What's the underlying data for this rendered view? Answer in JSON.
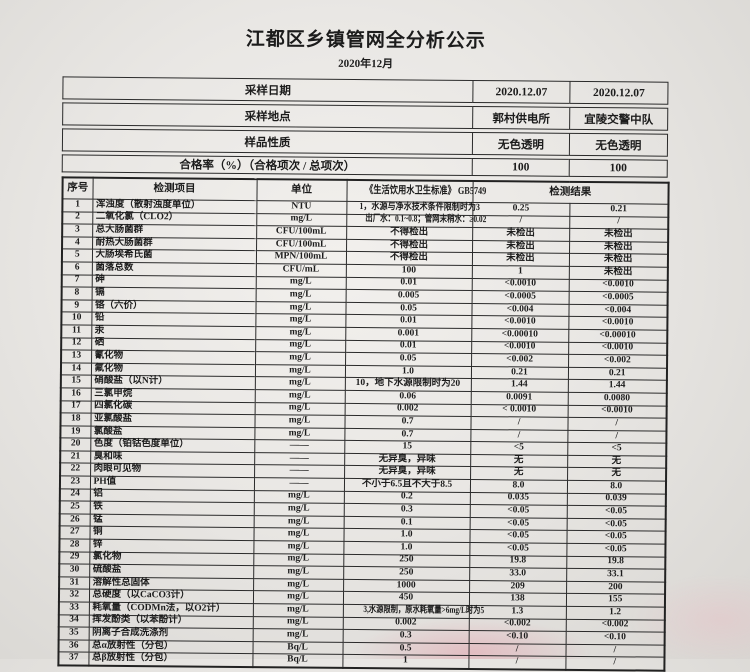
{
  "page": {
    "title": "江都区乡镇管网全分析公示",
    "subtitle": "2020年12月"
  },
  "colors": {
    "paper": "#f2f0ed",
    "ink": "#1c1c1c",
    "table_border": "#2b2b2b",
    "stamp_bleed_pink": "#e48c9c"
  },
  "info": {
    "rows": [
      {
        "label": "采样日期",
        "v1": "2020.12.07",
        "v2": "2020.12.07"
      },
      {
        "label": "采样地点",
        "v1": "郭村供电所",
        "v2": "宜陵交警中队"
      },
      {
        "label": "样品性质",
        "v1": "无色透明",
        "v2": "无色透明"
      },
      {
        "label": "合格率（%）（合格项次 / 总项次）",
        "v1": "100",
        "v2": "100"
      }
    ]
  },
  "table": {
    "headers": {
      "no": "序号",
      "item": "检测项目",
      "unit": "单位",
      "standard": "《生活饮用水卫生标准》 GB5749",
      "result": "检测结果"
    },
    "rows": [
      {
        "no": "1",
        "item": "浑浊度（散射浊度单位）",
        "unit": "NTU",
        "standard": "1，水源与净水技术条件限制时为3",
        "r1": "0.25",
        "r2": "0.21"
      },
      {
        "no": "2",
        "item": "二氧化氯（CLO2）",
        "unit": "mg/L",
        "standard": "出厂水：0.1~0.8；管网末稍水：≥0.02",
        "r1": "/",
        "r2": "/"
      },
      {
        "no": "3",
        "item": "总大肠菌群",
        "unit": "CFU/100mL",
        "standard": "不得检出",
        "r1": "未检出",
        "r2": "未检出"
      },
      {
        "no": "4",
        "item": "耐热大肠菌群",
        "unit": "CFU/100mL",
        "standard": "不得检出",
        "r1": "未检出",
        "r2": "未检出"
      },
      {
        "no": "5",
        "item": "大肠埃希氏菌",
        "unit": "MPN/100mL",
        "standard": "不得检出",
        "r1": "未检出",
        "r2": "未检出"
      },
      {
        "no": "6",
        "item": "菌落总数",
        "unit": "CFU/mL",
        "standard": "100",
        "r1": "1",
        "r2": "未检出"
      },
      {
        "no": "7",
        "item": "砷",
        "unit": "mg/L",
        "standard": "0.01",
        "r1": "<0.0010",
        "r2": "<0.0010"
      },
      {
        "no": "8",
        "item": "镉",
        "unit": "mg/L",
        "standard": "0.005",
        "r1": "<0.0005",
        "r2": "<0.0005"
      },
      {
        "no": "9",
        "item": "铬（六价）",
        "unit": "mg/L",
        "standard": "0.05",
        "r1": "<0.004",
        "r2": "<0.004"
      },
      {
        "no": "10",
        "item": "铅",
        "unit": "mg/L",
        "standard": "0.01",
        "r1": "<0.0010",
        "r2": "<0.0010"
      },
      {
        "no": "11",
        "item": "汞",
        "unit": "mg/L",
        "standard": "0.001",
        "r1": "<0.00010",
        "r2": "<0.00010"
      },
      {
        "no": "12",
        "item": "硒",
        "unit": "mg/L",
        "standard": "0.01",
        "r1": "<0.0010",
        "r2": "<0.0010"
      },
      {
        "no": "13",
        "item": "氰化物",
        "unit": "mg/L",
        "standard": "0.05",
        "r1": "<0.002",
        "r2": "<0.002"
      },
      {
        "no": "14",
        "item": "氟化物",
        "unit": "mg/L",
        "standard": "1.0",
        "r1": "0.21",
        "r2": "0.21"
      },
      {
        "no": "15",
        "item": "硝酸盐（以N计）",
        "unit": "mg/L",
        "standard": "10，地下水源限制时为20",
        "r1": "1.44",
        "r2": "1.44"
      },
      {
        "no": "16",
        "item": "三氯甲烷",
        "unit": "mg/L",
        "standard": "0.06",
        "r1": "0.0091",
        "r2": "0.0080"
      },
      {
        "no": "17",
        "item": "四氯化碳",
        "unit": "mg/L",
        "standard": "0.002",
        "r1": "< 0.0010",
        "r2": "<0.0010"
      },
      {
        "no": "18",
        "item": "亚氯酸盐",
        "unit": "mg/L",
        "standard": "0.7",
        "r1": "/",
        "r2": "/"
      },
      {
        "no": "19",
        "item": "氯酸盐",
        "unit": "mg/L",
        "standard": "0.7",
        "r1": "/",
        "r2": "/"
      },
      {
        "no": "20",
        "item": "色度（铂钴色度单位）",
        "unit": "——",
        "standard": "15",
        "r1": "<5",
        "r2": "<5"
      },
      {
        "no": "21",
        "item": "臭和味",
        "unit": "——",
        "standard": "无异臭，异味",
        "r1": "无",
        "r2": "无"
      },
      {
        "no": "22",
        "item": "肉眼可见物",
        "unit": "——",
        "standard": "无异臭，异味",
        "r1": "无",
        "r2": "无"
      },
      {
        "no": "23",
        "item": "PH值",
        "unit": "——",
        "standard": "不小于6.5且不大于8.5",
        "r1": "8.0",
        "r2": "8.0"
      },
      {
        "no": "24",
        "item": "铝",
        "unit": "mg/L",
        "standard": "0.2",
        "r1": "0.035",
        "r2": "0.039"
      },
      {
        "no": "25",
        "item": "铁",
        "unit": "mg/L",
        "standard": "0.3",
        "r1": "<0.05",
        "r2": "<0.05"
      },
      {
        "no": "26",
        "item": "锰",
        "unit": "mg/L",
        "standard": "0.1",
        "r1": "<0.05",
        "r2": "<0.05"
      },
      {
        "no": "27",
        "item": "铜",
        "unit": "mg/L",
        "standard": "1.0",
        "r1": "<0.05",
        "r2": "<0.05"
      },
      {
        "no": "28",
        "item": "锌",
        "unit": "mg/L",
        "standard": "1.0",
        "r1": "<0.05",
        "r2": "<0.05"
      },
      {
        "no": "29",
        "item": "氯化物",
        "unit": "mg/L",
        "standard": "250",
        "r1": "19.8",
        "r2": "19.8"
      },
      {
        "no": "30",
        "item": "硫酸盐",
        "unit": "mg/L",
        "standard": "250",
        "r1": "33.0",
        "r2": "33.1"
      },
      {
        "no": "31",
        "item": "溶解性总固体",
        "unit": "mg/L",
        "standard": "1000",
        "r1": "209",
        "r2": "200"
      },
      {
        "no": "32",
        "item": "总硬度（以CaCO3计）",
        "unit": "mg/L",
        "standard": "450",
        "r1": "138",
        "r2": "155"
      },
      {
        "no": "33",
        "item": "耗氧量（CODMn法，以O2计）",
        "unit": "mg/L",
        "standard": "3,水源限制，原水耗氧量>6mg/L时为5",
        "r1": "1.3",
        "r2": "1.2"
      },
      {
        "no": "34",
        "item": "挥发酚类（以苯酚计）",
        "unit": "mg/L",
        "standard": "0.002",
        "r1": "<0.002",
        "r2": "<0.002"
      },
      {
        "no": "35",
        "item": "阴离子合成洗涤剂",
        "unit": "mg/L",
        "standard": "0.3",
        "r1": "<0.10",
        "r2": "<0.10"
      },
      {
        "no": "36",
        "item": "总α放射性（分包）",
        "unit": "Bq/L",
        "standard": "0.5",
        "r1": "/",
        "r2": "/"
      },
      {
        "no": "37",
        "item": "总β放射性（分包）",
        "unit": "Bq/L",
        "standard": "1",
        "r1": "/",
        "r2": "/"
      }
    ]
  }
}
